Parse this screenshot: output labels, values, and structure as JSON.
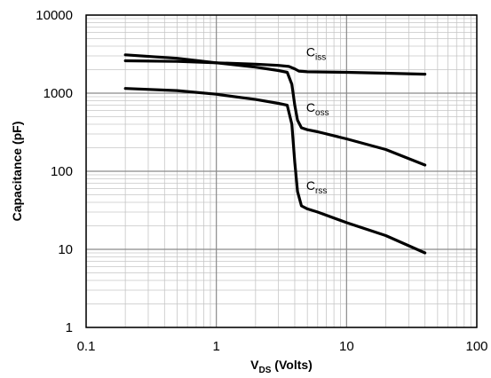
{
  "chart_data": {
    "type": "line",
    "xscale": "log",
    "yscale": "log",
    "xlim": [
      0.1,
      100
    ],
    "ylim": [
      1,
      10000
    ],
    "grid": true,
    "xlabel": {
      "main": "V",
      "sub": "DS",
      "rest": " (Volts)"
    },
    "ylabel": "Capacitance (pF)",
    "x_ticks": [
      {
        "value": 0.1,
        "label": "0.1"
      },
      {
        "value": 1,
        "label": "1"
      },
      {
        "value": 10,
        "label": "10"
      },
      {
        "value": 100,
        "label": "100"
      }
    ],
    "y_ticks": [
      {
        "value": 1,
        "label": "1"
      },
      {
        "value": 10,
        "label": "10"
      },
      {
        "value": 100,
        "label": "100"
      },
      {
        "value": 1000,
        "label": "1000"
      },
      {
        "value": 10000,
        "label": "10000"
      }
    ],
    "series": [
      {
        "name": "Ciss",
        "label_main": "C",
        "label_sub": "iss",
        "label_at": [
          4.9,
          2950
        ],
        "x": [
          0.2,
          0.5,
          1.0,
          2.0,
          3.0,
          3.6,
          4.0,
          4.3,
          5.0,
          10,
          20,
          40
        ],
        "y": [
          2600,
          2550,
          2450,
          2350,
          2270,
          2200,
          2050,
          1920,
          1880,
          1850,
          1800,
          1750
        ]
      },
      {
        "name": "Coss",
        "label_main": "C",
        "label_sub": "oss",
        "label_at": [
          4.9,
          580
        ],
        "x": [
          0.2,
          0.5,
          1.0,
          2.0,
          3.0,
          3.5,
          3.8,
          4.0,
          4.2,
          4.5,
          5.0,
          6.0,
          10,
          20,
          40
        ],
        "y": [
          3100,
          2800,
          2450,
          2150,
          1950,
          1850,
          1300,
          700,
          450,
          360,
          340,
          320,
          260,
          190,
          120
        ]
      },
      {
        "name": "Crss",
        "label_main": "C",
        "label_sub": "rss",
        "label_at": [
          4.9,
          58
        ],
        "x": [
          0.2,
          0.5,
          1.0,
          2.0,
          3.0,
          3.5,
          3.8,
          4.0,
          4.2,
          4.5,
          5.0,
          6.0,
          10,
          20,
          40
        ],
        "y": [
          1150,
          1080,
          970,
          830,
          740,
          700,
          400,
          130,
          55,
          36,
          33,
          30,
          22,
          15,
          9
        ]
      }
    ]
  }
}
